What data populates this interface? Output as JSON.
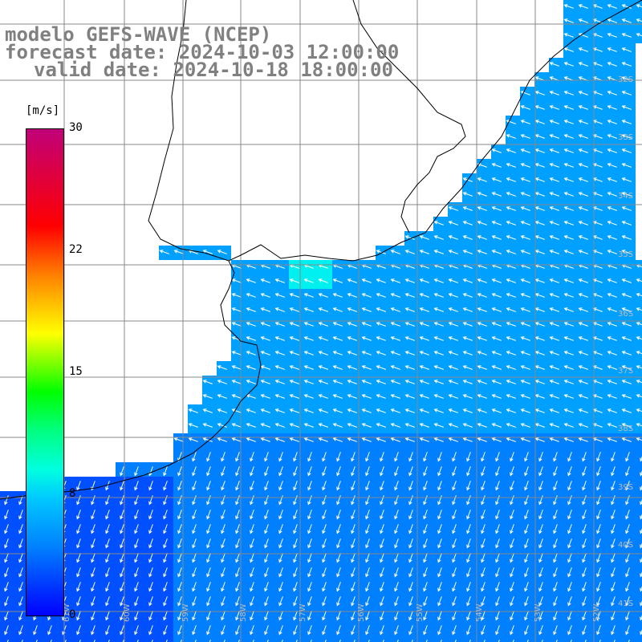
{
  "header": {
    "line1": "modelo GEFS-WAVE (NCEP)",
    "line2": "forecast date: 2024-10-03 12:00:00",
    "line3": "valid date: 2024-10-18 18:00:00"
  },
  "colorbar": {
    "unit": "[m/s]",
    "labels": [
      "30",
      "22",
      "15",
      "8",
      "0"
    ],
    "values": [
      30,
      22,
      15,
      8,
      0
    ],
    "colors": [
      "#0000ff",
      "#0080ff",
      "#00c8ff",
      "#00ffe0",
      "#00ff80",
      "#00ff00",
      "#80ff00",
      "#ffff00",
      "#ffc000",
      "#ff8000",
      "#ff0000",
      "#e0003c",
      "#c0007a"
    ]
  },
  "map": {
    "lat_labels": [
      "32S",
      "33S",
      "34S",
      "35S",
      "36S",
      "37S",
      "38S",
      "39S",
      "40S",
      "41S"
    ],
    "lon_labels": [
      "61W",
      "60W",
      "59W",
      "58W",
      "57W",
      "56W",
      "55W",
      "54W",
      "53W",
      "52W"
    ],
    "field": "wind speed and direction (vectors)"
  }
}
